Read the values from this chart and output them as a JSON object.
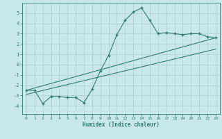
{
  "title": "",
  "xlabel": "Humidex (Indice chaleur)",
  "bg_color": "#c8e8e8",
  "grid_color": "#b0cece",
  "line_color": "#2e7d6e",
  "xlim": [
    -0.5,
    23.5
  ],
  "ylim": [
    -4.8,
    6.0
  ],
  "xticks": [
    0,
    1,
    2,
    3,
    4,
    5,
    6,
    7,
    8,
    9,
    10,
    11,
    12,
    13,
    14,
    15,
    16,
    17,
    18,
    19,
    20,
    21,
    22,
    23
  ],
  "yticks": [
    -4,
    -3,
    -2,
    -1,
    0,
    1,
    2,
    3,
    4,
    5
  ],
  "main_x": [
    0,
    1,
    2,
    3,
    4,
    5,
    6,
    7,
    8,
    9,
    10,
    11,
    12,
    13,
    14,
    15,
    16,
    17,
    18,
    19,
    20,
    21,
    22,
    23
  ],
  "main_y": [
    -2.5,
    -2.5,
    -3.8,
    -3.1,
    -3.1,
    -3.2,
    -3.2,
    -3.7,
    -2.4,
    -0.6,
    0.9,
    2.9,
    4.3,
    5.1,
    5.5,
    4.3,
    3.0,
    3.1,
    3.0,
    2.9,
    3.0,
    3.0,
    2.7,
    2.6
  ],
  "line1_x": [
    0,
    23
  ],
  "line1_y": [
    -2.5,
    2.6
  ],
  "line2_x": [
    0,
    23
  ],
  "line2_y": [
    -2.9,
    1.5
  ]
}
